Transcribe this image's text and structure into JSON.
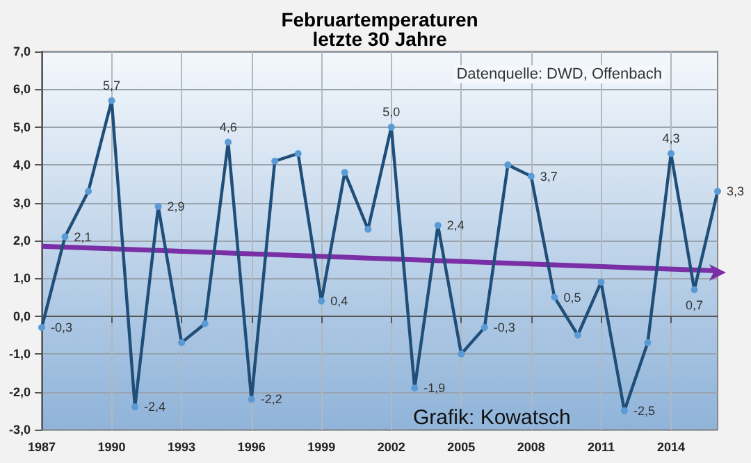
{
  "chart_data": {
    "type": "line",
    "title": "Februartemperaturen",
    "subtitle": "letzte 30 Jahre",
    "x": [
      1987,
      1988,
      1989,
      1990,
      1991,
      1992,
      1993,
      1994,
      1995,
      1996,
      1997,
      1998,
      1999,
      2000,
      2001,
      2002,
      2003,
      2004,
      2005,
      2006,
      2007,
      2008,
      2009,
      2010,
      2011,
      2012,
      2013,
      2014,
      2015,
      2016
    ],
    "series": [
      {
        "color": "#1f4e79",
        "marker": "circle",
        "values": [
          -0.3,
          2.1,
          3.3,
          5.7,
          -2.4,
          2.9,
          -0.7,
          -0.2,
          4.6,
          -2.2,
          4.1,
          4.3,
          0.4,
          3.8,
          2.3,
          5.0,
          -1.9,
          2.4,
          -1.0,
          -0.3,
          4.0,
          3.7,
          0.5,
          -0.5,
          0.9,
          -2.5,
          -0.7,
          4.3,
          0.7,
          3.3
        ],
        "value_labels": [
          "-0,3",
          "2,1",
          null,
          "5,7",
          "-2,4",
          "2,9",
          null,
          null,
          "4,6",
          "-2,2",
          null,
          null,
          "0,4",
          null,
          null,
          "5,0",
          "-1,9",
          "2,4",
          null,
          "-0,3",
          null,
          "3,7",
          "0,5",
          null,
          null,
          "-2,5",
          null,
          "4,3",
          "0,7",
          "3,3"
        ]
      },
      {
        "type": "line",
        "color": "#7b2fa6",
        "x": [
          1987,
          2016
        ],
        "values": [
          1.85,
          1.2
        ]
      }
    ],
    "xlim": [
      1987,
      2016
    ],
    "xticks": [
      1987,
      1990,
      1993,
      1996,
      1999,
      2002,
      2005,
      2008,
      2011,
      2014
    ],
    "ylim": [
      -3,
      7
    ],
    "yticks": [
      {
        "value": -3,
        "label": "-3,0"
      },
      {
        "value": -2,
        "label": "-2,0"
      },
      {
        "value": -1,
        "label": "-1,0"
      },
      {
        "value": 0,
        "label": "0,0"
      },
      {
        "value": 1,
        "label": "1,0"
      },
      {
        "value": 2,
        "label": "2,0"
      },
      {
        "value": 3,
        "label": "3,0"
      },
      {
        "value": 4,
        "label": "4,0"
      },
      {
        "value": 5,
        "label": "5,0"
      },
      {
        "value": 6,
        "label": "6,0"
      },
      {
        "value": 7,
        "label": "7,0"
      }
    ],
    "grid": true,
    "annotations": [
      "Datenquelle: DWD, Offenbach",
      "Grafik: Kowatsch"
    ]
  }
}
